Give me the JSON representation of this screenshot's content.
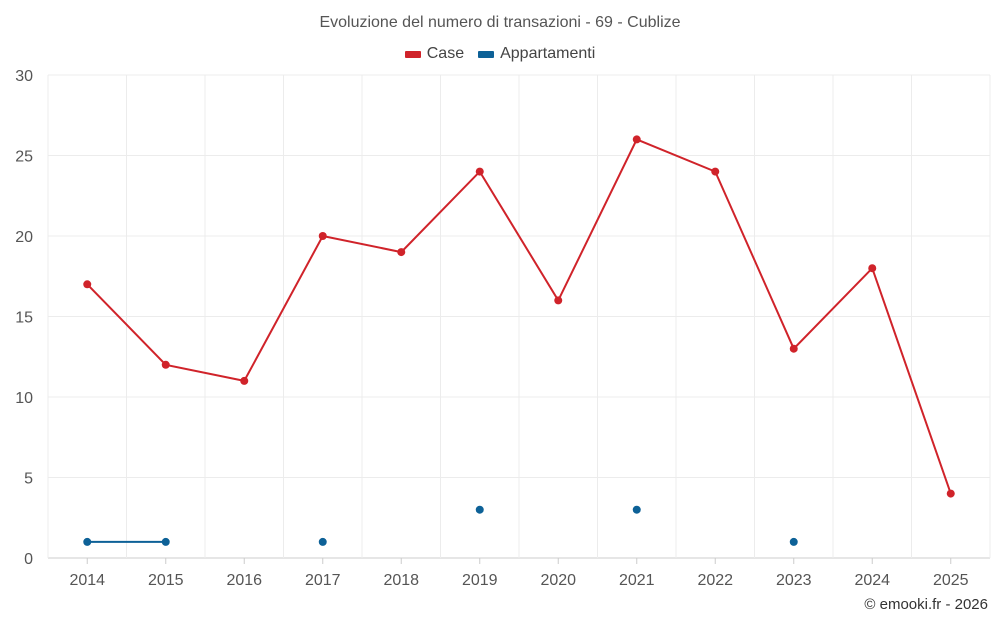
{
  "chart_data": {
    "type": "line",
    "title": "Evoluzione del numero di transazioni - 69 - Cublize",
    "categories": [
      "2014",
      "2015",
      "2016",
      "2017",
      "2018",
      "2019",
      "2020",
      "2021",
      "2022",
      "2023",
      "2024",
      "2025"
    ],
    "series": [
      {
        "name": "Case",
        "color": "#d0232a",
        "values": [
          17,
          12,
          11,
          20,
          19,
          24,
          16,
          26,
          24,
          13,
          18,
          4
        ]
      },
      {
        "name": "Appartamenti",
        "color": "#0d6197",
        "values": [
          1,
          1,
          null,
          1,
          null,
          3,
          null,
          3,
          null,
          1,
          null,
          null
        ]
      }
    ],
    "ylim": [
      0,
      30
    ],
    "yticks": [
      0,
      5,
      10,
      15,
      20,
      25,
      30
    ],
    "legend_position": "top-center",
    "grid": true
  },
  "credit": "© emooki.fr - 2026"
}
